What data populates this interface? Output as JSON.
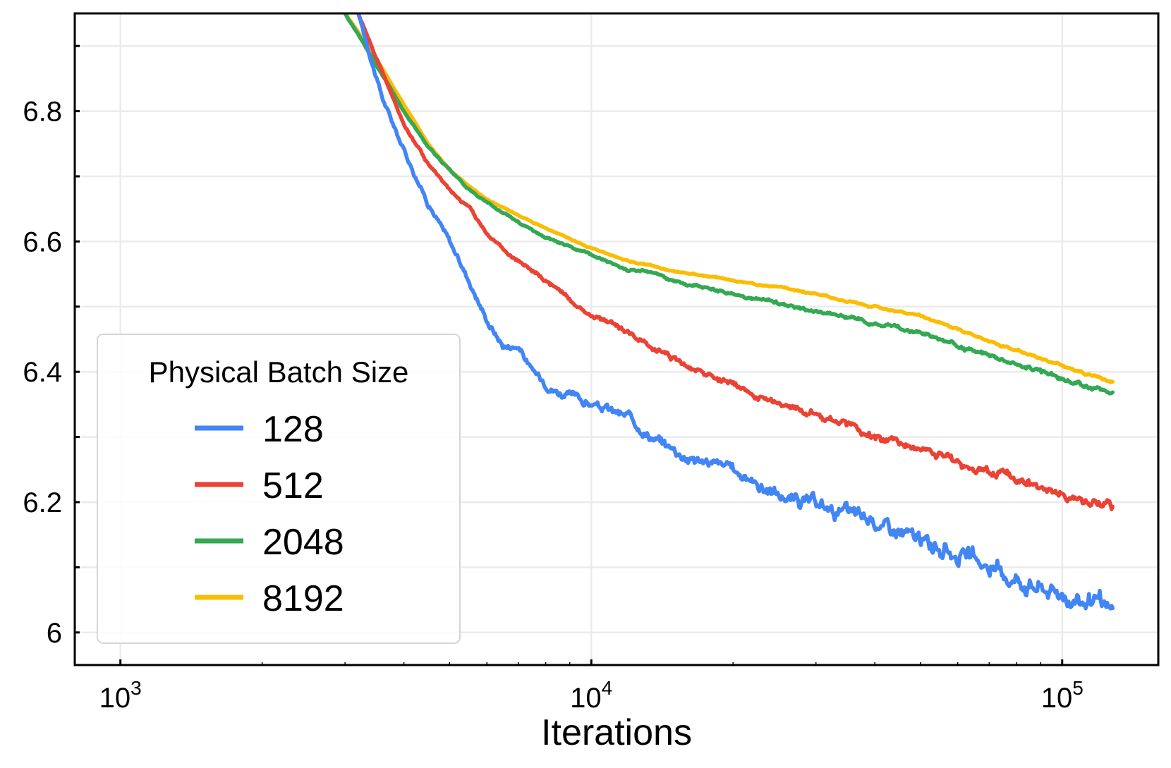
{
  "chart_data": {
    "type": "line",
    "title": "",
    "xlabel": "Iterations",
    "ylabel": "",
    "xscale": "log",
    "xlim": [
      800,
      160000
    ],
    "ylim": [
      5.95,
      6.95
    ],
    "grid": true,
    "x_ticks": [
      {
        "value": 1000,
        "base": "10",
        "exp": "3"
      },
      {
        "value": 10000,
        "base": "10",
        "exp": "4"
      },
      {
        "value": 100000,
        "base": "10",
        "exp": "5"
      }
    ],
    "y_ticks": [
      {
        "value": 6.0,
        "label": "6"
      },
      {
        "value": 6.2,
        "label": "6.2"
      },
      {
        "value": 6.4,
        "label": "6.4"
      },
      {
        "value": 6.6,
        "label": "6.6"
      },
      {
        "value": 6.8,
        "label": "6.8"
      }
    ],
    "legend": {
      "title": "Physical Batch Size",
      "position": "lower-left"
    },
    "series": [
      {
        "name": "128",
        "color": "#4285F4",
        "noise": 0.012,
        "x": [
          3200,
          3600,
          4000,
          4500,
          5000,
          5500,
          6000,
          6500,
          7000,
          7500,
          8500,
          10000,
          12000,
          13500,
          16000,
          20000,
          25000,
          32000,
          40000,
          50000,
          60000,
          75000,
          90000,
          110000,
          128000
        ],
        "y": [
          6.95,
          6.82,
          6.74,
          6.66,
          6.6,
          6.54,
          6.48,
          6.44,
          6.44,
          6.4,
          6.37,
          6.35,
          6.33,
          6.3,
          6.27,
          6.25,
          6.21,
          6.19,
          6.17,
          6.14,
          6.12,
          6.09,
          6.07,
          6.05,
          6.03
        ]
      },
      {
        "name": "512",
        "color": "#EA4335",
        "noise": 0.006,
        "x": [
          3200,
          3600,
          4000,
          4500,
          5000,
          5500,
          6000,
          7000,
          8000,
          9000,
          10000,
          12000,
          14000,
          16000,
          20000,
          25000,
          32000,
          40000,
          50000,
          60000,
          75000,
          90000,
          110000,
          128000
        ],
        "y": [
          6.95,
          6.86,
          6.78,
          6.72,
          6.68,
          6.65,
          6.61,
          6.57,
          6.54,
          6.51,
          6.49,
          6.46,
          6.43,
          6.41,
          6.38,
          6.35,
          6.33,
          6.3,
          6.28,
          6.26,
          6.24,
          6.22,
          6.2,
          6.19
        ]
      },
      {
        "name": "2048",
        "color": "#34A853",
        "noise": 0.003,
        "x": [
          3000,
          3500,
          4000,
          4500,
          5000,
          5500,
          6000,
          7000,
          8000,
          10000,
          12000,
          13000,
          15000,
          20000,
          25000,
          32000,
          40000,
          50000,
          60000,
          75000,
          90000,
          110000,
          128000
        ],
        "y": [
          6.95,
          6.87,
          6.8,
          6.745,
          6.71,
          6.68,
          6.66,
          6.63,
          6.605,
          6.58,
          6.555,
          6.555,
          6.54,
          6.52,
          6.505,
          6.49,
          6.475,
          6.46,
          6.44,
          6.42,
          6.4,
          6.38,
          6.37
        ]
      },
      {
        "name": "8192",
        "color": "#FBBC04",
        "noise": 0.0015,
        "x": [
          3000,
          3500,
          4000,
          4500,
          5000,
          5500,
          6000,
          7000,
          8000,
          10000,
          12000,
          15000,
          20000,
          25000,
          32000,
          40000,
          50000,
          60000,
          75000,
          90000,
          110000,
          128000
        ],
        "y": [
          6.95,
          6.88,
          6.81,
          6.75,
          6.71,
          6.685,
          6.665,
          6.64,
          6.62,
          6.59,
          6.57,
          6.555,
          6.54,
          6.53,
          6.515,
          6.5,
          6.485,
          6.465,
          6.44,
          6.42,
          6.4,
          6.385
        ]
      }
    ]
  }
}
